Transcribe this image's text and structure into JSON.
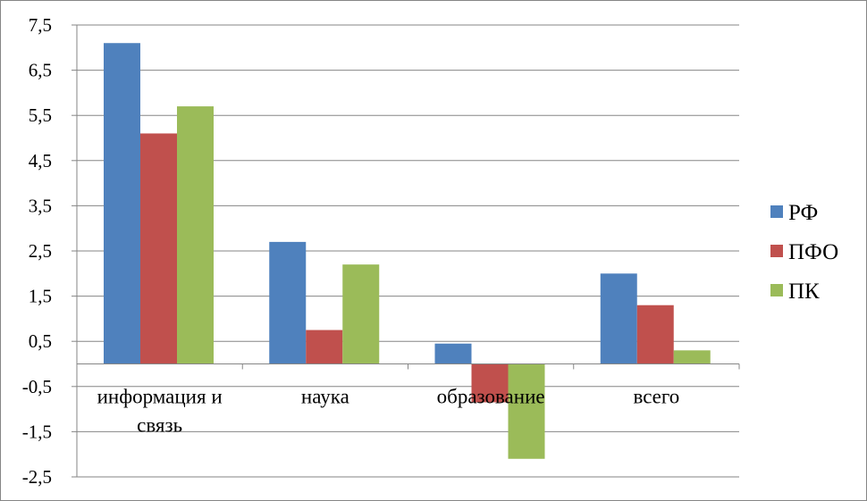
{
  "chart_data": {
    "type": "bar",
    "categories": [
      "информация и связь",
      "наука",
      "образование",
      "всего"
    ],
    "series": [
      {
        "name": "РФ",
        "color": "#4F81BD",
        "values": [
          7.1,
          2.7,
          0.45,
          2.0
        ]
      },
      {
        "name": "ПФО",
        "color": "#C0504D",
        "values": [
          5.1,
          0.75,
          -0.85,
          1.3
        ]
      },
      {
        "name": "ПК",
        "color": "#9BBB59",
        "values": [
          5.7,
          2.2,
          -2.1,
          0.3
        ]
      }
    ],
    "y_ticks": [
      "7,5",
      "6,5",
      "5,5",
      "4,5",
      "3,5",
      "2,5",
      "1,5",
      "0,5",
      "-0,5",
      "-1,5",
      "-2,5"
    ],
    "ylim": [
      -2.5,
      7.5
    ],
    "grid": true,
    "legend": "right"
  }
}
